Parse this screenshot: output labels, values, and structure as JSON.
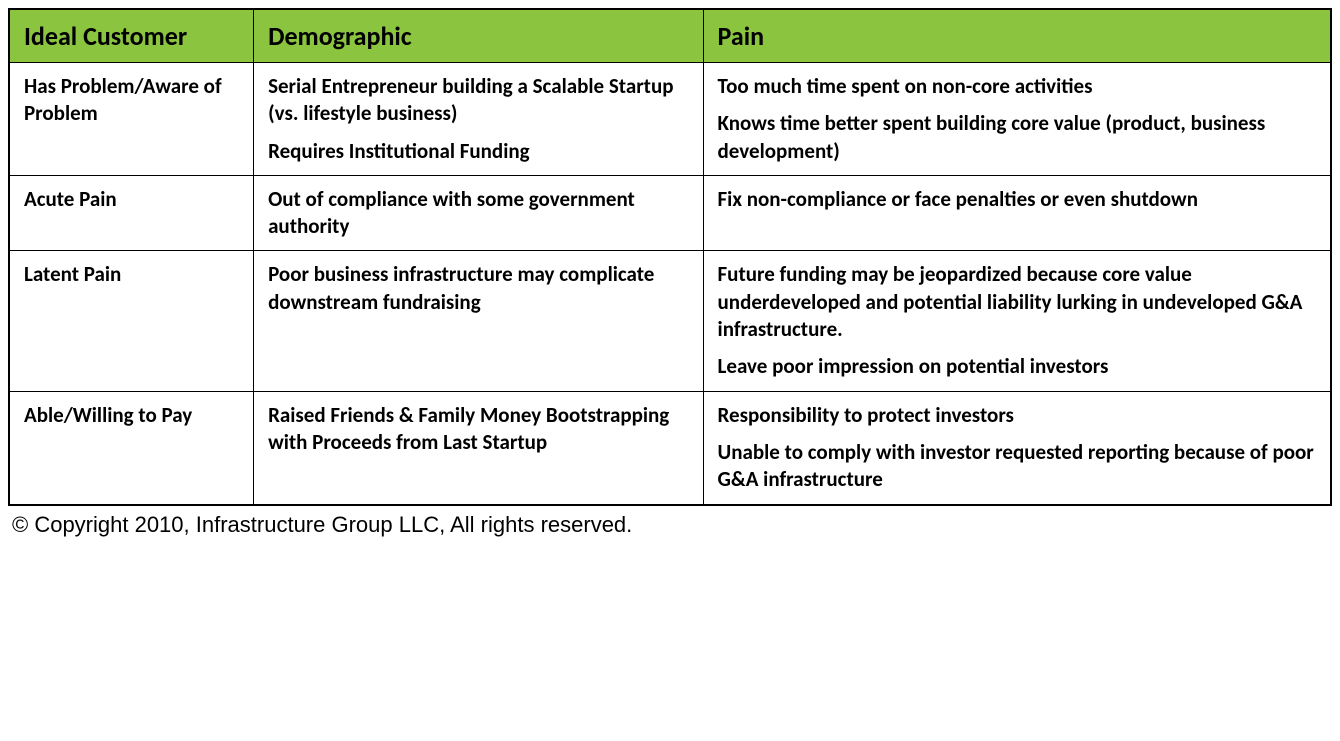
{
  "table": {
    "type": "table",
    "header_bg_color": "#8bc53f",
    "border_color": "#000000",
    "background_color": "#ffffff",
    "columns": [
      {
        "label": "Ideal Customer",
        "width": "18.5%"
      },
      {
        "label": "Demographic",
        "width": "34%"
      },
      {
        "label": "Pain",
        "width": "47.5%"
      }
    ],
    "rows": [
      {
        "c0": [
          "Has Problem/Aware of Problem"
        ],
        "c1": [
          "Serial Entrepreneur building a Scalable Startup (vs. lifestyle business)",
          "Requires Institutional Funding"
        ],
        "c2": [
          "Too much time spent on non-core activities",
          "Knows time better spent building core value (product, business development)"
        ]
      },
      {
        "c0": [
          "Acute Pain"
        ],
        "c1": [
          "Out of compliance with some government authority"
        ],
        "c2": [
          "Fix non-compliance or face penalties or even shutdown"
        ]
      },
      {
        "c0": [
          "Latent Pain"
        ],
        "c1": [
          "Poor business infrastructure may complicate downstream fundraising"
        ],
        "c2": [
          "Future funding may be jeopardized because core value underdeveloped and potential liability lurking in undeveloped G&A infrastructure.",
          "Leave poor impression on potential investors"
        ]
      },
      {
        "c0": [
          "Able/Willing to Pay"
        ],
        "c1": [
          "Raised Friends & Family Money Bootstrapping with Proceeds from Last Startup"
        ],
        "c2": [
          "Responsibility to protect investors",
          "Unable to comply with investor requested reporting because of poor G&A infrastructure"
        ]
      }
    ],
    "header_fontsize": 26,
    "cell_fontsize": 21,
    "font_weight": "bold"
  },
  "copyright": "© Copyright 2010, Infrastructure Group LLC, All rights reserved."
}
